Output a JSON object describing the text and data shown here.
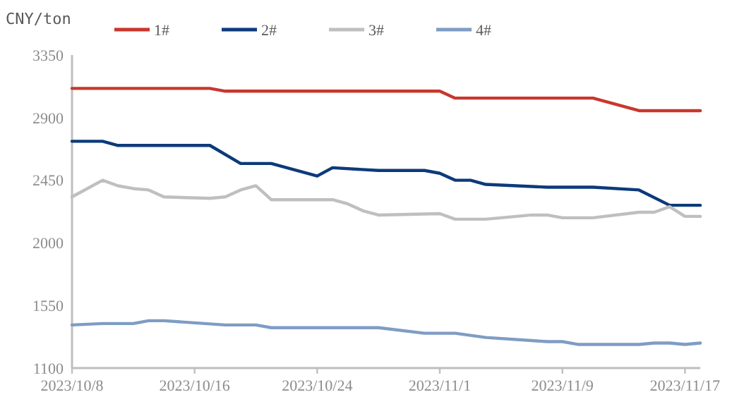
{
  "chart_data": {
    "type": "line",
    "ylabel": "CNY/ton",
    "xlim": [
      "2023-10-08",
      "2023-11-18"
    ],
    "xticks": [
      {
        "value": "2023-10-08",
        "label": "2023/10/8"
      },
      {
        "value": "2023-10-16",
        "label": "2023/10/16"
      },
      {
        "value": "2023-10-24",
        "label": "2023/10/24"
      },
      {
        "value": "2023-11-01",
        "label": "2023/11/1"
      },
      {
        "value": "2023-11-09",
        "label": "2023/11/9"
      },
      {
        "value": "2023-11-17",
        "label": "2023/11/17"
      }
    ],
    "ylim": [
      1100,
      3350
    ],
    "yticks": [
      1100,
      1550,
      2000,
      2450,
      2900,
      3350
    ],
    "grid": false,
    "legend": "top",
    "marker": "none",
    "line_style": "solid",
    "series": [
      {
        "name": "1#",
        "color": "#c8372d",
        "x": [
          "2023-10-08",
          "2023-10-17",
          "2023-10-18",
          "2023-11-01",
          "2023-11-02",
          "2023-11-11",
          "2023-11-14",
          "2023-11-18"
        ],
        "values": [
          3110,
          3110,
          3090,
          3090,
          3040,
          3040,
          2950,
          2950
        ]
      },
      {
        "name": "2#",
        "color": "#0d3a7a",
        "x": [
          "2023-10-08",
          "2023-10-10",
          "2023-10-11",
          "2023-10-17",
          "2023-10-19",
          "2023-10-21",
          "2023-10-24",
          "2023-10-25",
          "2023-10-28",
          "2023-10-31",
          "2023-11-01",
          "2023-11-02",
          "2023-11-03",
          "2023-11-04",
          "2023-11-08",
          "2023-11-11",
          "2023-11-14",
          "2023-11-16",
          "2023-11-18"
        ],
        "values": [
          2730,
          2730,
          2700,
          2700,
          2570,
          2570,
          2480,
          2540,
          2520,
          2520,
          2500,
          2450,
          2450,
          2420,
          2400,
          2400,
          2380,
          2270,
          2270
        ]
      },
      {
        "name": "3#",
        "color": "#bfbfbf",
        "x": [
          "2023-10-08",
          "2023-10-10",
          "2023-10-11",
          "2023-10-12",
          "2023-10-13",
          "2023-10-14",
          "2023-10-17",
          "2023-10-18",
          "2023-10-19",
          "2023-10-20",
          "2023-10-21",
          "2023-10-25",
          "2023-10-26",
          "2023-10-27",
          "2023-10-28",
          "2023-11-01",
          "2023-11-02",
          "2023-11-04",
          "2023-11-07",
          "2023-11-08",
          "2023-11-09",
          "2023-11-11",
          "2023-11-14",
          "2023-11-15",
          "2023-11-16",
          "2023-11-17",
          "2023-11-18"
        ],
        "values": [
          2330,
          2450,
          2410,
          2390,
          2380,
          2330,
          2320,
          2330,
          2380,
          2410,
          2310,
          2310,
          2280,
          2230,
          2200,
          2210,
          2170,
          2170,
          2200,
          2200,
          2180,
          2180,
          2220,
          2220,
          2260,
          2190,
          2190
        ]
      },
      {
        "name": "4#",
        "color": "#7f9cc4",
        "x": [
          "2023-10-08",
          "2023-10-10",
          "2023-10-12",
          "2023-10-13",
          "2023-10-14",
          "2023-10-18",
          "2023-10-20",
          "2023-10-21",
          "2023-10-28",
          "2023-10-31",
          "2023-11-02",
          "2023-11-04",
          "2023-11-08",
          "2023-11-09",
          "2023-11-10",
          "2023-11-14",
          "2023-11-15",
          "2023-11-16",
          "2023-11-17",
          "2023-11-18"
        ],
        "values": [
          1410,
          1420,
          1420,
          1440,
          1440,
          1410,
          1410,
          1390,
          1390,
          1350,
          1350,
          1320,
          1290,
          1290,
          1270,
          1270,
          1280,
          1280,
          1270,
          1280
        ]
      }
    ]
  }
}
